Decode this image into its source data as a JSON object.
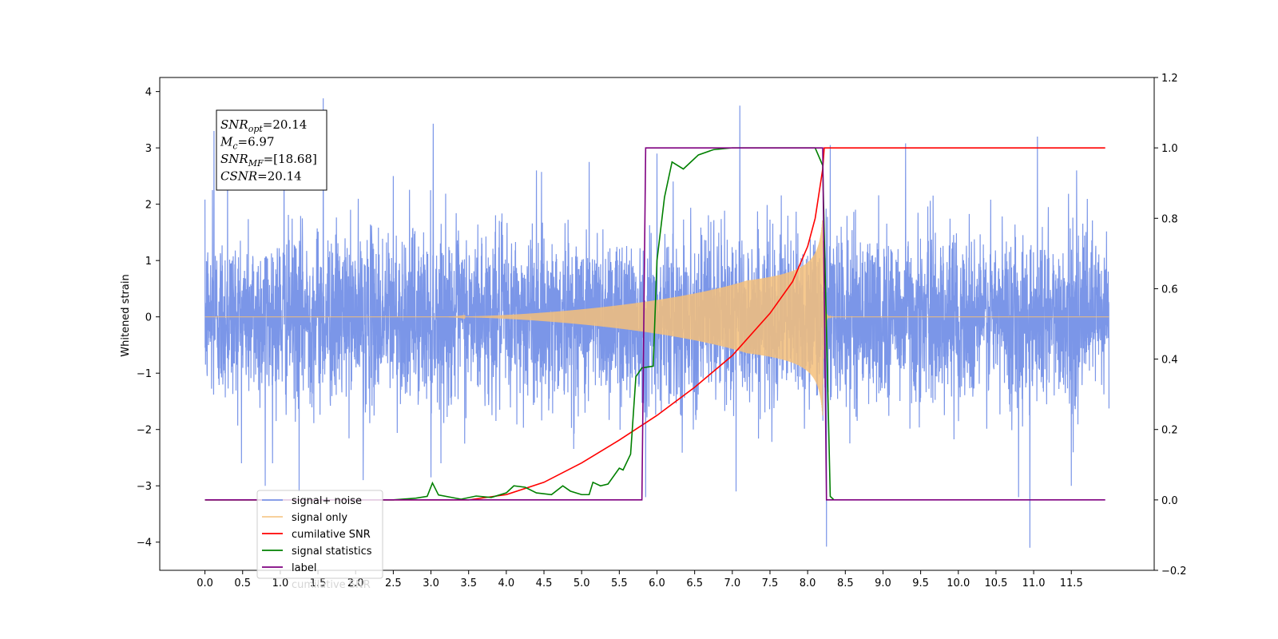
{
  "chart_data": {
    "type": "line",
    "title": "",
    "xlabel": "",
    "ylabel": "Whitened strain",
    "y2label": "",
    "xlim": [
      -0.6,
      12.6
    ],
    "ylim": [
      -4.5,
      4.25
    ],
    "y2lim": [
      -0.2,
      1.2
    ],
    "x_ticks": [
      "0.0",
      "0.5",
      "1.0",
      "1.5",
      "2.0",
      "2.5",
      "3.0",
      "3.5",
      "4.0",
      "4.5",
      "5.0",
      "5.5",
      "6.0",
      "6.5",
      "7.0",
      "7.5",
      "8.0",
      "8.5",
      "9.0",
      "9.5",
      "10.0",
      "10.5",
      "11.0",
      "11.5"
    ],
    "y_ticks": [
      4,
      3,
      2,
      1,
      0,
      -1,
      -2,
      -3,
      -4
    ],
    "y2_ticks": [
      "1.2",
      "1.0",
      "0.8",
      "0.6",
      "0.4",
      "0.2",
      "0.0",
      "-0.2"
    ],
    "grid": false,
    "legend_position": "lower-left",
    "annotation": {
      "lines": [
        {
          "main": "SNR",
          "sub": "opt",
          "rest": "=20.14"
        },
        {
          "main": "M",
          "sub": "c",
          "rest": "=6.97"
        },
        {
          "main": "SNR",
          "sub": "MF",
          "rest": "=[18.68]"
        },
        {
          "main": "CSNR",
          "sub": "",
          "rest": "=20.14"
        }
      ]
    },
    "series": [
      {
        "name": "signal+ noise",
        "axis": "left",
        "color": "#7b96e8",
        "kind": "noise",
        "x_range": [
          0.0,
          12.0
        ],
        "std": 0.75,
        "peaks": [
          [
            0.1,
            2.25
          ],
          [
            0.12,
            3.3
          ],
          [
            0.3,
            2.7
          ],
          [
            0.8,
            -3.0
          ],
          [
            1.05,
            3.05
          ],
          [
            1.25,
            -3.1
          ],
          [
            1.57,
            3.88
          ],
          [
            2.1,
            -2.9
          ],
          [
            2.5,
            2.5
          ],
          [
            3.03,
            3.43
          ],
          [
            3.0,
            -2.85
          ],
          [
            4.4,
            2.6
          ],
          [
            5.1,
            2.75
          ],
          [
            5.85,
            -3.2
          ],
          [
            6.0,
            2.9
          ],
          [
            7.1,
            3.75
          ],
          [
            7.05,
            -3.1
          ],
          [
            8.25,
            -4.08
          ],
          [
            8.3,
            3.05
          ],
          [
            9.3,
            3.08
          ],
          [
            10.8,
            -3.2
          ],
          [
            11.05,
            3.2
          ],
          [
            10.95,
            -4.1
          ],
          [
            11.5,
            -3.0
          ]
        ]
      },
      {
        "name": "signal only",
        "axis": "left",
        "color": "#f5c07a",
        "kind": "chirp",
        "x_range": [
          0.0,
          12.0
        ],
        "merger_x": 8.2,
        "max_amplitude": 1.35
      },
      {
        "name": "cumilative SNR",
        "axis": "right",
        "color": "#ff0000",
        "x": [
          0.0,
          3.5,
          4.0,
          4.5,
          5.0,
          5.5,
          6.0,
          6.5,
          7.0,
          7.5,
          7.8,
          8.0,
          8.1,
          8.15,
          8.2,
          8.22,
          11.95
        ],
        "y": [
          0.0,
          0.0,
          0.015,
          0.05,
          0.105,
          0.17,
          0.24,
          0.32,
          0.41,
          0.53,
          0.62,
          0.72,
          0.8,
          0.87,
          0.94,
          1.0,
          1.0
        ]
      },
      {
        "name": "signal statistics",
        "axis": "right",
        "color": "#008000",
        "x": [
          0.0,
          2.5,
          2.8,
          2.95,
          3.02,
          3.1,
          3.4,
          3.6,
          3.8,
          4.0,
          4.1,
          4.25,
          4.4,
          4.6,
          4.75,
          4.85,
          5.0,
          5.1,
          5.15,
          5.25,
          5.35,
          5.5,
          5.55,
          5.65,
          5.72,
          5.8,
          5.95,
          6.0,
          6.1,
          6.2,
          6.35,
          6.45,
          6.55,
          6.75,
          7.0,
          8.1,
          8.2,
          8.3,
          8.35
        ],
        "y": [
          0.0,
          0.0,
          0.005,
          0.01,
          0.048,
          0.014,
          0.002,
          0.011,
          0.007,
          0.02,
          0.04,
          0.036,
          0.02,
          0.015,
          0.04,
          0.025,
          0.015,
          0.015,
          0.05,
          0.04,
          0.045,
          0.09,
          0.085,
          0.13,
          0.35,
          0.375,
          0.38,
          0.68,
          0.86,
          0.96,
          0.94,
          0.96,
          0.98,
          0.995,
          1.0,
          1.0,
          0.95,
          0.01,
          0.0
        ]
      },
      {
        "name": "label",
        "axis": "right",
        "color": "#7f0080",
        "x": [
          0.0,
          5.8,
          5.85,
          8.2,
          8.25,
          11.95
        ],
        "y": [
          0.0,
          0.0,
          1.0,
          1.0,
          0.0,
          0.0
        ]
      },
      {
        "name": "cumilative SNR",
        "axis": "right",
        "color": "#000000",
        "legend_only": true
      }
    ]
  }
}
